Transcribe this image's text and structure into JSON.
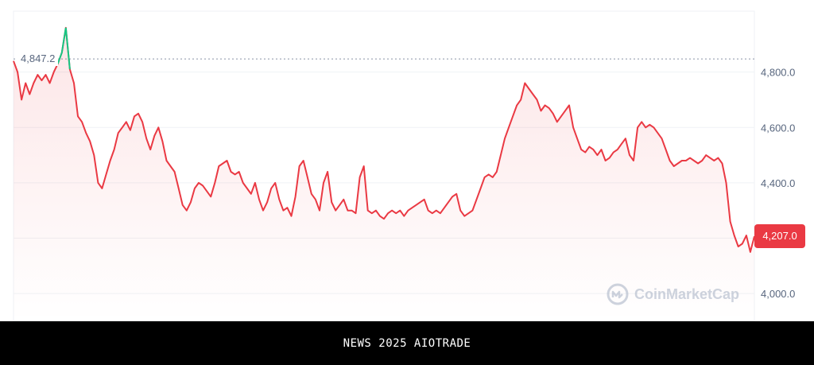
{
  "chart_data": {
    "type": "line",
    "y_ticks": [
      "4,800.0",
      "4,600.0",
      "4,400.0",
      "4,200.0",
      "4,000.0"
    ],
    "y_tick_values": [
      4800,
      4600,
      4400,
      4200,
      4000
    ],
    "ylim": [
      3900,
      5020
    ],
    "grid": true,
    "reference_line": {
      "value": 4847.2,
      "label": "4,847.2"
    },
    "current_price": {
      "value": 4207.0,
      "label": "4,207.0"
    },
    "series": [
      {
        "color": "#ea3943",
        "segment_color": "#16c784",
        "values": [
          4840,
          4800,
          4700,
          4760,
          4720,
          4760,
          4790,
          4770,
          4790,
          4760,
          4800,
          4830,
          4870,
          4960,
          4810,
          4760,
          4640,
          4620,
          4580,
          4550,
          4500,
          4400,
          4380,
          4430,
          4480,
          4520,
          4580,
          4600,
          4620,
          4590,
          4640,
          4650,
          4620,
          4560,
          4520,
          4570,
          4600,
          4550,
          4480,
          4460,
          4440,
          4380,
          4320,
          4300,
          4330,
          4380,
          4400,
          4390,
          4370,
          4350,
          4400,
          4460,
          4470,
          4480,
          4440,
          4430,
          4440,
          4400,
          4380,
          4360,
          4400,
          4340,
          4300,
          4330,
          4380,
          4400,
          4340,
          4300,
          4310,
          4280,
          4350,
          4460,
          4480,
          4420,
          4360,
          4340,
          4300,
          4400,
          4440,
          4330,
          4300,
          4320,
          4340,
          4300,
          4300,
          4290,
          4420,
          4460,
          4300,
          4290,
          4300,
          4280,
          4270,
          4290,
          4300,
          4290,
          4300,
          4280,
          4300,
          4310,
          4320,
          4330,
          4340,
          4300,
          4290,
          4300,
          4290,
          4310,
          4330,
          4350,
          4360,
          4300,
          4280,
          4290,
          4300,
          4340,
          4380,
          4420,
          4430,
          4420,
          4440,
          4500,
          4560,
          4600,
          4640,
          4680,
          4700,
          4760,
          4740,
          4720,
          4700,
          4660,
          4680,
          4670,
          4650,
          4620,
          4640,
          4660,
          4680,
          4600,
          4560,
          4520,
          4510,
          4530,
          4520,
          4500,
          4520,
          4480,
          4490,
          4510,
          4520,
          4540,
          4560,
          4500,
          4480,
          4600,
          4620,
          4600,
          4610,
          4600,
          4580,
          4560,
          4520,
          4480,
          4460,
          4470,
          4480,
          4480,
          4490,
          4480,
          4470,
          4480,
          4500,
          4490,
          4480,
          4490,
          4470,
          4400,
          4260,
          4210,
          4170,
          4180,
          4210,
          4150,
          4207
        ]
      }
    ]
  },
  "watermark": {
    "text": "CoinMarketCap",
    "icon": "coinmarketcap-logo-icon"
  },
  "footer": {
    "text": "NEWS 2025 AIOTRADE"
  }
}
